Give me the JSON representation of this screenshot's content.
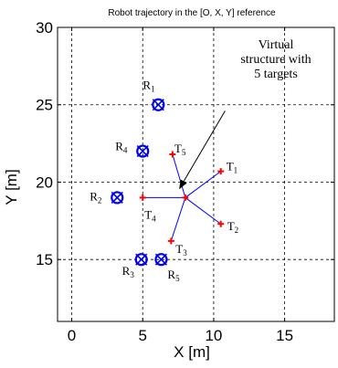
{
  "chart_data": {
    "type": "scatter",
    "title": "Robot trajectory in the [O, X, Y] reference",
    "xlabel": "X [m]",
    "ylabel": "Y [m]",
    "xlim": [
      -1,
      18.5
    ],
    "ylim": [
      11,
      30
    ],
    "xticks": [
      0,
      5,
      10,
      15
    ],
    "yticks": [
      15,
      20,
      25,
      30
    ],
    "grid": true,
    "colors": {
      "robot": "#0000ee",
      "target": "#ff0000",
      "structure": "#0000ee",
      "grid": "#000000"
    },
    "center": {
      "x": 8.0,
      "y": 19.0
    },
    "targets": [
      {
        "letter": "T",
        "index": "1",
        "x": 10.5,
        "y": 20.7
      },
      {
        "letter": "T",
        "index": "2",
        "x": 10.5,
        "y": 17.3
      },
      {
        "letter": "T",
        "index": "3",
        "x": 7.0,
        "y": 16.2
      },
      {
        "letter": "T",
        "index": "4",
        "x": 5.0,
        "y": 19.0
      },
      {
        "letter": "T",
        "index": "5",
        "x": 7.1,
        "y": 21.8
      }
    ],
    "robots": [
      {
        "letter": "R",
        "index": "1",
        "x": 6.1,
        "y": 25.0
      },
      {
        "letter": "R",
        "index": "2",
        "x": 3.2,
        "y": 19.0
      },
      {
        "letter": "R",
        "index": "3",
        "x": 4.9,
        "y": 15.0
      },
      {
        "letter": "R",
        "index": "4",
        "x": 5.0,
        "y": 22.0
      },
      {
        "letter": "R",
        "index": "5",
        "x": 6.3,
        "y": 15.0
      }
    ],
    "annotation": {
      "lines": [
        "Virtual",
        "structure with",
        "5 targets"
      ],
      "arrow_from": {
        "x": 10.8,
        "y": 24.6
      },
      "arrow_to": {
        "x": 7.6,
        "y": 19.6
      }
    }
  }
}
